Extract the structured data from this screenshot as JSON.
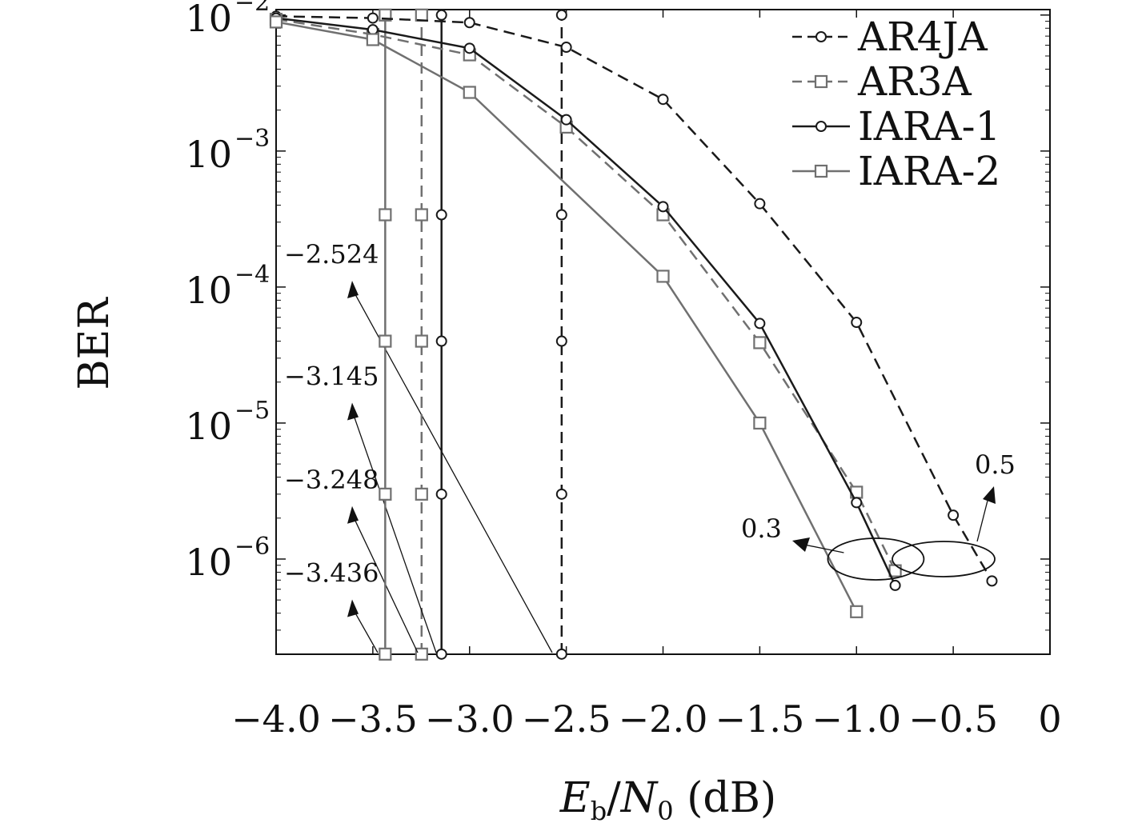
{
  "chart_data": {
    "type": "line",
    "title": "",
    "xlabel": "E_b/N_0 (dB)",
    "ylabel": "BER",
    "xlim": [
      -4.0,
      0
    ],
    "ylim_log10": [
      -6.7,
      -1.96
    ],
    "yscale": "log",
    "grid": false,
    "legend_position": "top-right",
    "x_ticks": [
      -4.0,
      -3.5,
      -3.0,
      -2.5,
      -2.0,
      -1.5,
      -1.0,
      -0.5,
      0
    ],
    "x_tick_labels": [
      "−4.0",
      "−3.5",
      "−3.0",
      "−2.5",
      "−2.0",
      "−1.5",
      "−1.0",
      "−0.5",
      "0"
    ],
    "y_ticks_exp": [
      -2,
      -3,
      -4,
      -5,
      -6
    ],
    "y_tick_base": "10",
    "series": [
      {
        "name": "AR4JA",
        "color": "#1a1a1a",
        "dash": true,
        "marker": "circle",
        "x": [
          -4.0,
          -3.5,
          -3.0,
          -2.5,
          -2.0,
          -1.5,
          -1.0,
          -0.5,
          -0.3
        ],
        "y": [
          0.0098,
          0.0095,
          0.0088,
          0.0058,
          0.0024,
          0.00041,
          5.5e-05,
          2.1e-06,
          6.9e-07
        ]
      },
      {
        "name": "AR3A",
        "color": "#707070",
        "dash": true,
        "marker": "square",
        "x": [
          -4.0,
          -3.5,
          -3.0,
          -2.5,
          -2.0,
          -1.5,
          -1.0,
          -0.8
        ],
        "y": [
          0.0093,
          0.0072,
          0.0051,
          0.0015,
          0.00034,
          3.9e-05,
          3.1e-06,
          8.2e-07
        ]
      },
      {
        "name": "IARA-1",
        "color": "#1a1a1a",
        "dash": false,
        "marker": "circle",
        "x": [
          -4.0,
          -3.5,
          -3.0,
          -2.5,
          -2.0,
          -1.5,
          -1.0,
          -0.8
        ],
        "y": [
          0.0095,
          0.0078,
          0.0057,
          0.0017,
          0.00039,
          5.4e-05,
          2.6e-06,
          6.4e-07
        ]
      },
      {
        "name": "IARA-2",
        "color": "#707070",
        "dash": false,
        "marker": "square",
        "x": [
          -4.0,
          -3.5,
          -3.0,
          -2.0,
          -1.5,
          -1.0
        ],
        "y": [
          0.0089,
          0.0066,
          0.0027,
          0.00012,
          1e-05,
          4.1e-07
        ]
      }
    ],
    "threshold_lines": [
      {
        "series": "AR4JA",
        "x": -2.524,
        "label": "−2.524",
        "label_y": 0.00015
      },
      {
        "series": "AR3A",
        "x": -3.248,
        "label": "−3.248",
        "label_y": 3.3e-06
      },
      {
        "series": "IARA-1",
        "x": -3.145,
        "label": "−3.145",
        "label_y": 1.9e-05
      },
      {
        "series": "IARA-2",
        "x": -3.436,
        "label": "−3.436",
        "label_y": 6.8e-07
      }
    ],
    "threshold_marker_y": [
      0.01,
      0.00034,
      4e-05,
      3e-06,
      2e-07
    ],
    "ellipse_annotations": [
      {
        "label": "0.3",
        "x": -0.9
      },
      {
        "label": "0.5",
        "x": -0.55
      }
    ]
  }
}
